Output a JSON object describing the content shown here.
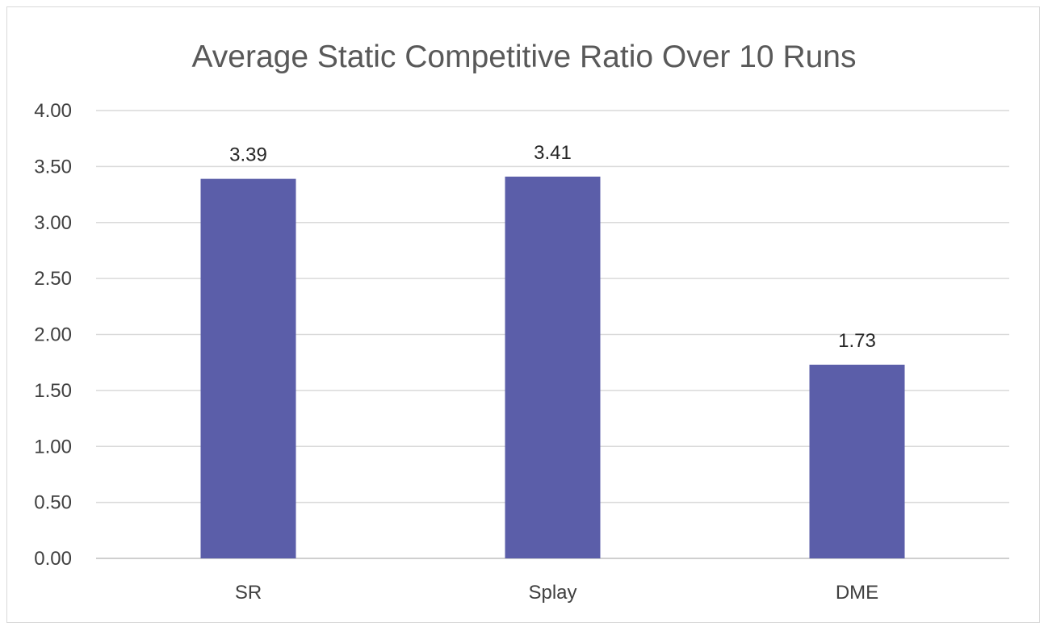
{
  "chart_data": {
    "type": "bar",
    "title": "Average Static Competitive Ratio Over 10 Runs",
    "categories": [
      "SR",
      "Splay",
      "DME"
    ],
    "values": [
      3.39,
      3.41,
      1.73
    ],
    "data_labels": [
      "3.39",
      "3.41",
      "1.73"
    ],
    "ylim": [
      0,
      4
    ],
    "y_ticks": [
      0,
      0.5,
      1,
      1.5,
      2,
      2.5,
      3,
      3.5,
      4
    ],
    "y_tick_labels": [
      "0.00",
      "0.50",
      "1.00",
      "1.50",
      "2.00",
      "2.50",
      "3.00",
      "3.50",
      "4.00"
    ],
    "grid": true,
    "legend": "none",
    "bar_color": "#5b5ea9"
  }
}
